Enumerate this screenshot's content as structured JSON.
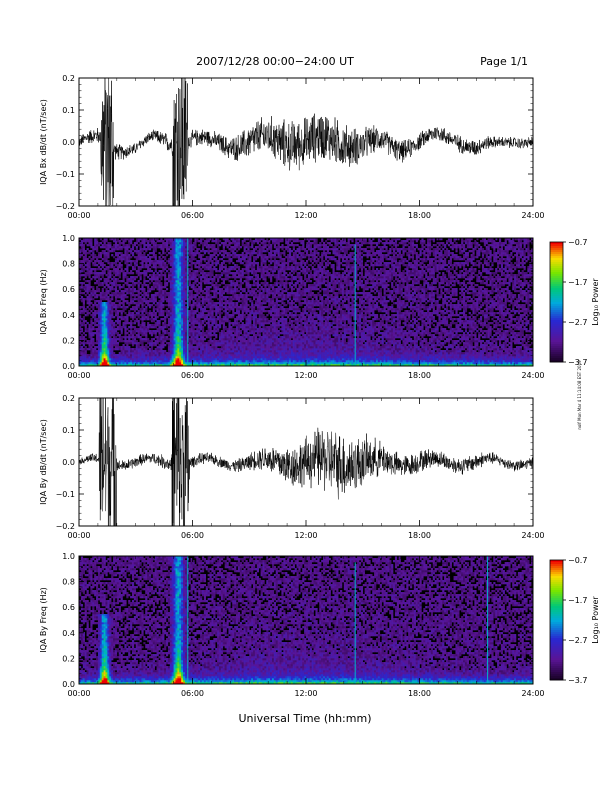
{
  "header": {
    "title": "2007/12/28  00:00−24:00 UT",
    "page": "Page 1/1"
  },
  "footer": {
    "xlabel": "Universal Time (hh:mm)",
    "side_note": "nolf Mon Mar 4 11:14:08 EST 2019"
  },
  "chart_data": [
    {
      "type": "line",
      "ylabel": "IQA Bx dB/dt (nT/sec)",
      "xlim": [
        "00:00",
        "24:00"
      ],
      "x_ticks": [
        "00:00",
        "06:00",
        "12:00",
        "18:00",
        "24:00"
      ],
      "ylim": [
        -0.2,
        0.2
      ],
      "y_ticks": [
        "−0.2",
        "−0.1",
        "0.0",
        "0.1",
        "0.2"
      ],
      "bursts": [
        {
          "start_h": 1.15,
          "end_h": 1.85,
          "amplitude": 0.35
        },
        {
          "start_h": 4.95,
          "end_h": 5.75,
          "amplitude": 0.35
        }
      ],
      "envelope": {
        "times_h": [
          0,
          1,
          2,
          3,
          4,
          5,
          6,
          7,
          8,
          9,
          10,
          11,
          12,
          13,
          14,
          15,
          16,
          17,
          18,
          19,
          20,
          21,
          22,
          23,
          24
        ],
        "amplitude": [
          0.02,
          0.03,
          0.03,
          0.02,
          0.02,
          0.04,
          0.03,
          0.03,
          0.04,
          0.06,
          0.07,
          0.09,
          0.09,
          0.09,
          0.08,
          0.06,
          0.04,
          0.04,
          0.03,
          0.03,
          0.03,
          0.03,
          0.02,
          0.02,
          0.02
        ]
      },
      "baseline": {
        "times_h": [
          0,
          1,
          2,
          3,
          4,
          5,
          6,
          7,
          8,
          9,
          10,
          11,
          12,
          13,
          14,
          15,
          16,
          17,
          18,
          19,
          20,
          21,
          22,
          23,
          24
        ],
        "values": [
          0.0,
          0.01,
          -0.02,
          -0.02,
          0.01,
          0.0,
          0.01,
          0.0,
          -0.01,
          0.0,
          0.01,
          0.0,
          0.0,
          0.01,
          0.0,
          -0.01,
          0.0,
          -0.02,
          0.0,
          0.02,
          0.01,
          -0.02,
          -0.01,
          0.01,
          0.0
        ]
      }
    },
    {
      "type": "heatmap",
      "ylabel": "IQA Bx Freq (Hz)",
      "xlim": [
        "00:00",
        "24:00"
      ],
      "x_ticks": [
        "00:00",
        "06:00",
        "12:00",
        "18:00",
        "24:00"
      ],
      "ylim": [
        0.0,
        1.0
      ],
      "y_ticks": [
        "0.0",
        "0.2",
        "0.4",
        "0.6",
        "0.8",
        "1.0"
      ],
      "colorbar": {
        "label": "Log₁₀ Power",
        "range": [
          -3.7,
          -0.7
        ],
        "ticks": [
          "−0.7",
          "−1.7",
          "−2.7",
          "−3.7"
        ]
      },
      "features": [
        {
          "kind": "burst",
          "time_h": 1.35,
          "width_h": 0.5,
          "max_freq_hz": 0.5
        },
        {
          "kind": "burst",
          "time_h": 5.25,
          "width_h": 0.6,
          "max_freq_hz": 1.0
        },
        {
          "kind": "line",
          "time_h": 5.75,
          "max_freq_hz": 1.0
        },
        {
          "kind": "line",
          "time_h": 14.6,
          "max_freq_hz": 0.95
        }
      ]
    },
    {
      "type": "line",
      "ylabel": "IQA By dB/dt (nT/sec)",
      "xlim": [
        "00:00",
        "24:00"
      ],
      "x_ticks": [
        "00:00",
        "06:00",
        "12:00",
        "18:00",
        "24:00"
      ],
      "ylim": [
        -0.2,
        0.2
      ],
      "y_ticks": [
        "−0.2",
        "−0.1",
        "0.0",
        "0.1",
        "0.2"
      ],
      "bursts": [
        {
          "start_h": 1.05,
          "end_h": 2.0,
          "amplitude": 0.35
        },
        {
          "start_h": 4.9,
          "end_h": 5.85,
          "amplitude": 0.35
        }
      ],
      "envelope": {
        "times_h": [
          0,
          1,
          2,
          3,
          4,
          5,
          6,
          7,
          8,
          9,
          10,
          11,
          12,
          13,
          14,
          15,
          16,
          17,
          18,
          19,
          20,
          21,
          22,
          23,
          24
        ],
        "amplitude": [
          0.01,
          0.02,
          0.02,
          0.02,
          0.02,
          0.03,
          0.02,
          0.02,
          0.02,
          0.03,
          0.05,
          0.07,
          0.09,
          0.12,
          0.12,
          0.09,
          0.06,
          0.04,
          0.04,
          0.03,
          0.03,
          0.03,
          0.02,
          0.02,
          0.02
        ]
      },
      "baseline": {
        "times_h": [
          0,
          24
        ],
        "values": [
          0.0,
          0.0
        ]
      }
    },
    {
      "type": "heatmap",
      "ylabel": "IQA By Freq (Hz)",
      "xlim": [
        "00:00",
        "24:00"
      ],
      "x_ticks": [
        "00:00",
        "06:00",
        "12:00",
        "18:00",
        "24:00"
      ],
      "ylim": [
        0.0,
        1.0
      ],
      "y_ticks": [
        "0.0",
        "0.2",
        "0.4",
        "0.6",
        "0.8",
        "1.0"
      ],
      "colorbar": {
        "label": "Log₁₀ Power",
        "range": [
          -3.7,
          -0.7
        ],
        "ticks": [
          "−0.7",
          "−1.7",
          "−2.7",
          "−3.7"
        ]
      },
      "features": [
        {
          "kind": "burst",
          "time_h": 1.35,
          "width_h": 0.5,
          "max_freq_hz": 0.55
        },
        {
          "kind": "burst",
          "time_h": 5.25,
          "width_h": 0.6,
          "max_freq_hz": 1.0
        },
        {
          "kind": "line",
          "time_h": 5.75,
          "max_freq_hz": 1.0
        },
        {
          "kind": "line",
          "time_h": 14.6,
          "max_freq_hz": 0.95
        },
        {
          "kind": "line",
          "time_h": 21.6,
          "max_freq_hz": 1.0
        }
      ]
    }
  ]
}
